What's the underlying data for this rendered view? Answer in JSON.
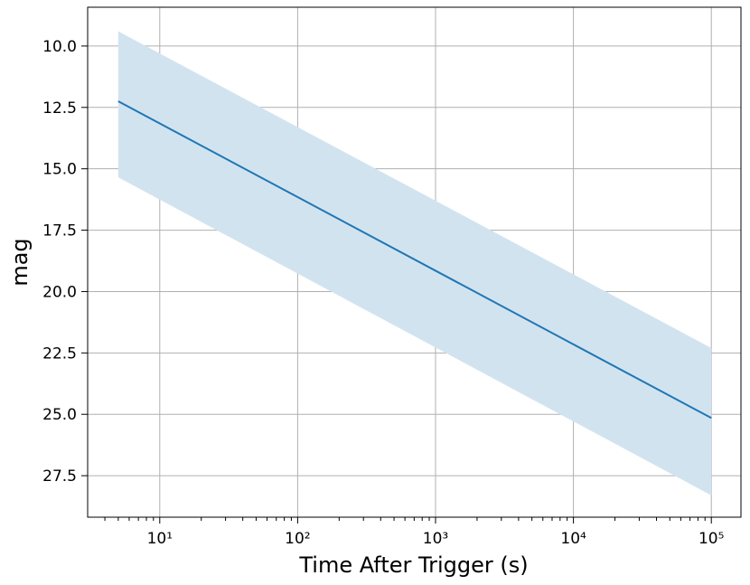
{
  "chart_data": {
    "type": "line",
    "xlabel": "Time After Trigger (s)",
    "ylabel": "mag",
    "x": [
      5,
      100000
    ],
    "series": [
      {
        "color": "#1f77b4",
        "values": [
          12.25,
          25.15
        ],
        "band_low": [
          9.4,
          22.3
        ],
        "band_high": [
          15.35,
          28.3
        ],
        "band_color": "#d2e3f0"
      }
    ],
    "xscale": "log",
    "xlim": [
      3,
      164000
    ],
    "xticks": [
      {
        "value": 10,
        "label": "10¹"
      },
      {
        "value": 100,
        "label": "10²"
      },
      {
        "value": 1000,
        "label": "10³"
      },
      {
        "value": 10000,
        "label": "10⁴"
      },
      {
        "value": 100000,
        "label": "10⁵"
      }
    ],
    "xminorticks": [
      4,
      5,
      6,
      7,
      8,
      9,
      20,
      30,
      40,
      50,
      60,
      70,
      80,
      90,
      200,
      300,
      400,
      500,
      600,
      700,
      800,
      900,
      2000,
      3000,
      4000,
      5000,
      6000,
      7000,
      8000,
      9000,
      20000,
      30000,
      40000,
      50000,
      60000,
      70000,
      80000,
      90000
    ],
    "ylim": [
      8.42,
      29.19
    ],
    "yinverted": true,
    "yticks": [
      {
        "value": 10,
        "label": "10.0"
      },
      12.5,
      {
        "value": 15,
        "label": "15.0"
      },
      17.5,
      {
        "value": 20,
        "label": "20.0"
      },
      22.5,
      {
        "value": 25,
        "label": "25.0"
      },
      27.5
    ],
    "grid": true
  }
}
